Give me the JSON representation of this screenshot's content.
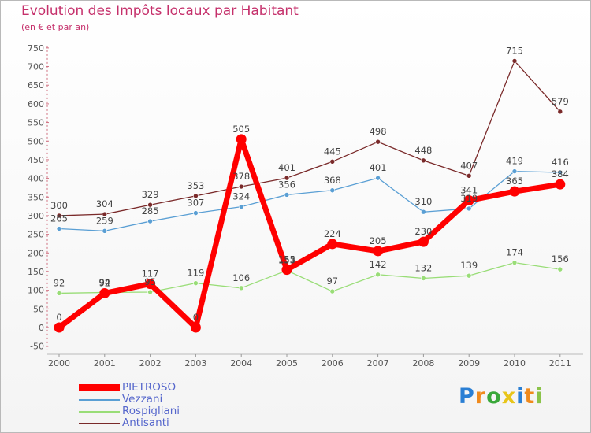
{
  "header": {
    "title": "Evolution des Impôts locaux par Habitant",
    "subtitle": "(en € et par an)"
  },
  "chart_data": {
    "type": "line",
    "x": [
      "2000",
      "2001",
      "2002",
      "2003",
      "2004",
      "2005",
      "2006",
      "2007",
      "2008",
      "2009",
      "2010",
      "2011"
    ],
    "ylim": [
      -50,
      750
    ],
    "yticks": [
      -50,
      0,
      50,
      100,
      150,
      200,
      250,
      300,
      350,
      400,
      450,
      500,
      550,
      600,
      650,
      700,
      750
    ],
    "grid": false,
    "legend_position": "bottom-left",
    "series": [
      {
        "name": "PIETROSO",
        "values": [
          0,
          92,
          117,
          0,
          505,
          155,
          224,
          205,
          230,
          341,
          365,
          384
        ],
        "color": "#ff0000"
      },
      {
        "name": "Vezzani",
        "values": [
          265,
          259,
          285,
          307,
          324,
          356,
          368,
          401,
          310,
          319,
          419,
          416
        ],
        "color": "#5a9fd4"
      },
      {
        "name": "Rospigliani",
        "values": [
          92,
          94,
          95,
          119,
          106,
          153,
          97,
          142,
          132,
          139,
          174,
          156
        ],
        "color": "#99dd77"
      },
      {
        "name": "Antisanti",
        "values": [
          300,
          304,
          329,
          353,
          378,
          401,
          445,
          498,
          448,
          407,
          715,
          579
        ],
        "color": "#7a2a2a"
      }
    ]
  },
  "logo": {
    "letters": [
      "P",
      "r",
      "o",
      "x",
      "i",
      "t",
      "i"
    ],
    "colors": [
      "#2a7fd4",
      "#f08a1c",
      "#3aa83a",
      "#e8c51a",
      "#2a7fd4",
      "#f08a1c",
      "#8bc34a"
    ]
  }
}
